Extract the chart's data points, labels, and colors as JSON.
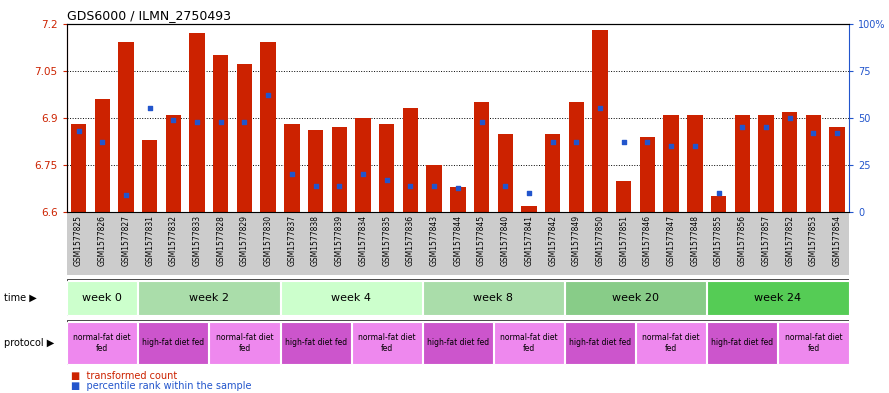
{
  "title": "GDS6000 / ILMN_2750493",
  "samples": [
    "GSM1577825",
    "GSM1577826",
    "GSM1577827",
    "GSM1577831",
    "GSM1577832",
    "GSM1577833",
    "GSM1577828",
    "GSM1577829",
    "GSM1577830",
    "GSM1577837",
    "GSM1577838",
    "GSM1577839",
    "GSM1577834",
    "GSM1577835",
    "GSM1577836",
    "GSM1577843",
    "GSM1577844",
    "GSM1577845",
    "GSM1577840",
    "GSM1577841",
    "GSM1577842",
    "GSM1577849",
    "GSM1577850",
    "GSM1577851",
    "GSM1577846",
    "GSM1577847",
    "GSM1577848",
    "GSM1577855",
    "GSM1577856",
    "GSM1577857",
    "GSM1577852",
    "GSM1577853",
    "GSM1577854"
  ],
  "bar_values": [
    6.88,
    6.96,
    7.14,
    6.83,
    6.91,
    7.17,
    7.1,
    7.07,
    7.14,
    6.88,
    6.86,
    6.87,
    6.9,
    6.88,
    6.93,
    6.75,
    6.68,
    6.95,
    6.85,
    6.62,
    6.85,
    6.95,
    7.18,
    6.7,
    6.84,
    6.91,
    6.91,
    6.65,
    6.91,
    6.91,
    6.92,
    6.91,
    6.87
  ],
  "percentile_values": [
    43,
    37,
    9,
    55,
    49,
    48,
    48,
    48,
    62,
    20,
    14,
    14,
    20,
    17,
    14,
    14,
    13,
    48,
    14,
    10,
    37,
    37,
    55,
    37,
    37,
    35,
    35,
    10,
    45,
    45,
    50,
    42,
    42
  ],
  "ylim_left": [
    6.6,
    7.2
  ],
  "yticks_left": [
    6.6,
    6.75,
    6.9,
    7.05,
    7.2
  ],
  "ylim_right": [
    0,
    100
  ],
  "yticks_right": [
    0,
    25,
    50,
    75,
    100
  ],
  "bar_color": "#cc2200",
  "dot_color": "#2255cc",
  "bar_width": 0.65,
  "time_groups": [
    {
      "label": "week 0",
      "start": 0,
      "end": 3,
      "color": "#ccffcc"
    },
    {
      "label": "week 2",
      "start": 3,
      "end": 9,
      "color": "#aaddaa"
    },
    {
      "label": "week 4",
      "start": 9,
      "end": 15,
      "color": "#ccffcc"
    },
    {
      "label": "week 8",
      "start": 15,
      "end": 21,
      "color": "#aaddaa"
    },
    {
      "label": "week 20",
      "start": 21,
      "end": 27,
      "color": "#88cc88"
    },
    {
      "label": "week 24",
      "start": 27,
      "end": 33,
      "color": "#55cc55"
    }
  ],
  "protocol_groups": [
    {
      "label": "normal-fat diet\nfed",
      "start": 0,
      "end": 3,
      "color": "#ee88ee"
    },
    {
      "label": "high-fat diet fed",
      "start": 3,
      "end": 6,
      "color": "#cc55cc"
    },
    {
      "label": "normal-fat diet\nfed",
      "start": 6,
      "end": 9,
      "color": "#ee88ee"
    },
    {
      "label": "high-fat diet fed",
      "start": 9,
      "end": 12,
      "color": "#cc55cc"
    },
    {
      "label": "normal-fat diet\nfed",
      "start": 12,
      "end": 15,
      "color": "#ee88ee"
    },
    {
      "label": "high-fat diet fed",
      "start": 15,
      "end": 18,
      "color": "#cc55cc"
    },
    {
      "label": "normal-fat diet\nfed",
      "start": 18,
      "end": 21,
      "color": "#ee88ee"
    },
    {
      "label": "high-fat diet fed",
      "start": 21,
      "end": 24,
      "color": "#cc55cc"
    },
    {
      "label": "normal-fat diet\nfed",
      "start": 24,
      "end": 27,
      "color": "#ee88ee"
    },
    {
      "label": "high-fat diet fed",
      "start": 27,
      "end": 30,
      "color": "#cc55cc"
    },
    {
      "label": "normal-fat diet\nfed",
      "start": 30,
      "end": 33,
      "color": "#ee88ee"
    }
  ],
  "bg_color": "#cccccc",
  "fig_width": 8.89,
  "fig_height": 3.93
}
